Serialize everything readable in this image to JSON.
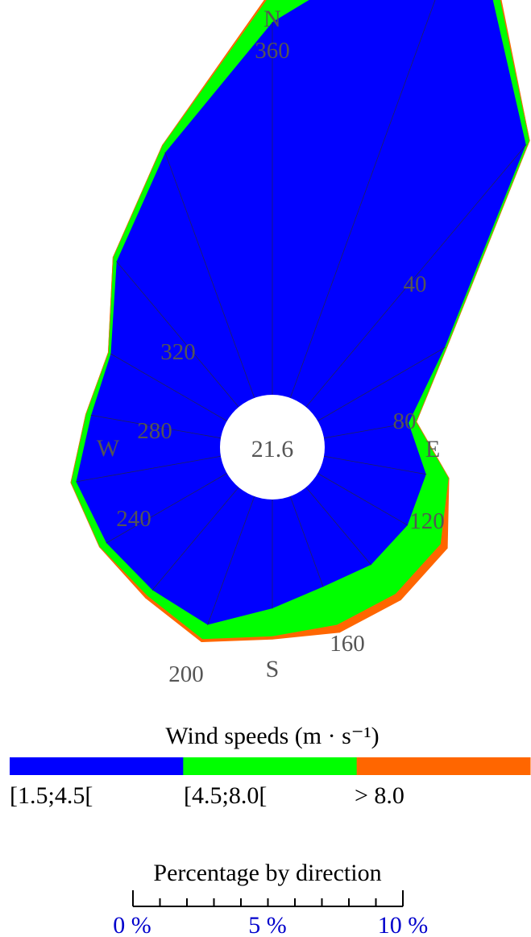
{
  "chart_data": {
    "type": "wind-rose",
    "calm_label": "21.6",
    "compass": [
      {
        "label": "N",
        "angle": 0
      },
      {
        "label": "E",
        "angle": 90
      },
      {
        "label": "S",
        "angle": 180
      },
      {
        "label": "W",
        "angle": 270
      }
    ],
    "degree_labels": [
      {
        "label": "360",
        "angle": 360
      },
      {
        "label": "40",
        "angle": 40
      },
      {
        "label": "80",
        "angle": 80
      },
      {
        "label": "120",
        "angle": 120
      },
      {
        "label": "160",
        "angle": 160
      },
      {
        "label": "200",
        "angle": 200
      },
      {
        "label": "240",
        "angle": 240
      },
      {
        "label": "280",
        "angle": 280
      },
      {
        "label": "320",
        "angle": 320
      }
    ],
    "directions": [
      0,
      20,
      40,
      60,
      80,
      100,
      120,
      140,
      160,
      180,
      200,
      220,
      240,
      260,
      280,
      300,
      320,
      340
    ],
    "series": [
      {
        "name": "[1.5;4.5[",
        "color": "#0000ff",
        "values": [
          14.7,
          20.8,
          13.5,
          5.8,
          3.4,
          4.1,
          4.1,
          4.0,
          3.8,
          4.3,
          5.4,
          5.3,
          5.5,
          5.8,
          5.2,
          5.3,
          7.5,
          10.3
        ]
      },
      {
        "name": "[4.5;8.0[",
        "color": "#00ff00",
        "values": [
          1.2,
          0.7,
          0.2,
          0.1,
          0.3,
          0.9,
          1.5,
          1.5,
          1.6,
          1.1,
          0.6,
          0.3,
          0.3,
          0.2,
          0.2,
          0.1,
          0.2,
          0.3
        ]
      },
      {
        "name": "> 8.0",
        "color": "#ff6600",
        "values": [
          0.1,
          0.1,
          0.0,
          0.0,
          0.0,
          0.0,
          0.3,
          0.3,
          0.3,
          0.1,
          0.1,
          0.1,
          0.0,
          0.0,
          0.0,
          0.0,
          0.0,
          0.0
        ]
      }
    ],
    "legend_title": "Wind speeds (m · s⁻¹)",
    "scale_title": "Percentage by direction",
    "scale_ticks": [
      "0 %",
      "5 %",
      "10 %"
    ],
    "scale_range": [
      0,
      10
    ]
  }
}
